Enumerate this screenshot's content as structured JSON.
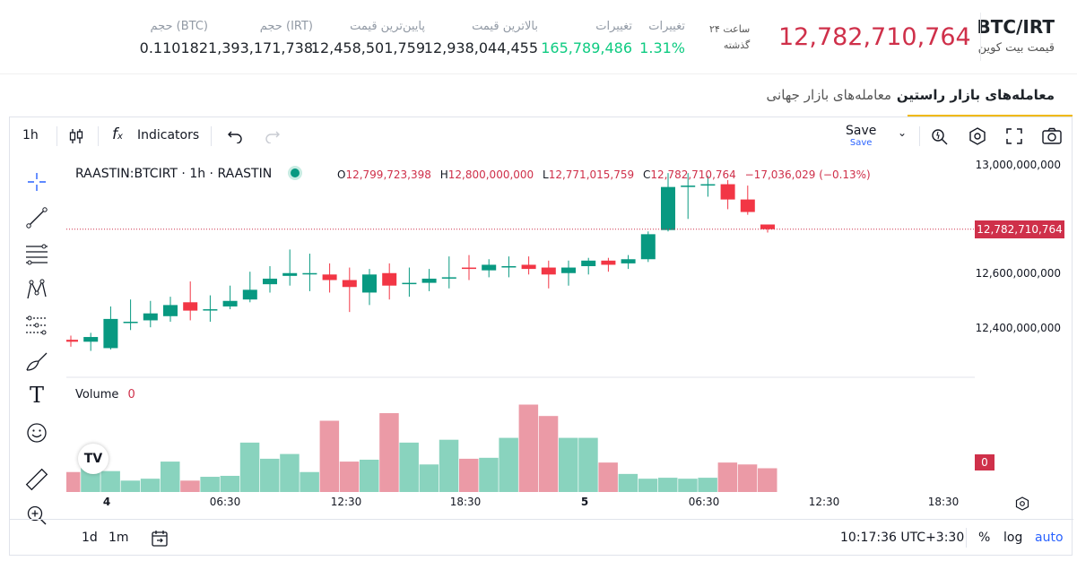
{
  "header": {
    "pair": "BTC/IRT",
    "pair_subtitle": "قیمت بیت کوین",
    "last_price": "12,782,710,764",
    "period_label": "۲۴ ساعت",
    "period_sub": "گذشته",
    "stats": [
      {
        "label": "تغییرات",
        "value": "1.31%",
        "green": true
      },
      {
        "label": "تغییرات",
        "value": "165,789,486",
        "green": true
      },
      {
        "label": "بالاترین قیمت",
        "value": "12,938,044,455",
        "green": false
      },
      {
        "label": "پایین‌ترین قیمت",
        "value": "12,458,501,759",
        "green": false
      },
      {
        "label": "حجم (IRT)",
        "value": "1,393,171,738",
        "green": false
      },
      {
        "label": "حجم (BTC)",
        "value": "0.110182",
        "green": false
      }
    ]
  },
  "tabs": [
    {
      "label": "معامله‌های بازار راستین",
      "active": true
    },
    {
      "label": "معامله‌های بازار جهانی",
      "active": false
    }
  ],
  "toolbar": {
    "interval": "1h",
    "indicators": "Indicators",
    "save": "Save",
    "save_sub": "Save"
  },
  "chart": {
    "symbol_line": "RAASTIN:BTCIRT · 1h · RAASTIN",
    "ohlc": {
      "o_label": "O",
      "o": "12,799,723,398",
      "h_label": "H",
      "h": "12,800,000,000",
      "l_label": "L",
      "l": "12,771,015,759",
      "c_label": "C",
      "c": "12,782,710,764",
      "change": "−17,036,029 (−0.13%)"
    },
    "volume_label": "Volume",
    "volume_value": "0",
    "volume_badge": "0",
    "last_price_tag": "12,782,710,764",
    "y_ticks": [
      "13,000,000,000",
      "12,600,000,000",
      "12,400,000,000"
    ],
    "x_ticks": [
      {
        "label": "4",
        "bold": true
      },
      {
        "label": "06:30",
        "bold": false
      },
      {
        "label": "12:30",
        "bold": false
      },
      {
        "label": "18:30",
        "bold": false
      },
      {
        "label": "5",
        "bold": true
      },
      {
        "label": "06:30",
        "bold": false
      },
      {
        "label": "12:30",
        "bold": false
      },
      {
        "label": "18:30",
        "bold": false
      }
    ],
    "colors": {
      "up": "#089981",
      "down": "#f23645",
      "vol_up": "#89d3be",
      "vol_down": "#eb9aa6"
    }
  },
  "chart_data": {
    "type": "candlestick",
    "y_range": [
      12250000000,
      13050000000
    ],
    "candles": [
      {
        "o": 12385000000,
        "h": 12400000000,
        "l": 12360000000,
        "c": 12378000000
      },
      {
        "o": 12378000000,
        "h": 12410000000,
        "l": 12345000000,
        "c": 12395000000
      },
      {
        "o": 12355000000,
        "h": 12505000000,
        "l": 12350000000,
        "c": 12460000000
      },
      {
        "o": 12450000000,
        "h": 12530000000,
        "l": 12420000000,
        "c": 12450000000
      },
      {
        "o": 12455000000,
        "h": 12525000000,
        "l": 12430000000,
        "c": 12480000000
      },
      {
        "o": 12470000000,
        "h": 12540000000,
        "l": 12450000000,
        "c": 12510000000
      },
      {
        "o": 12520000000,
        "h": 12595000000,
        "l": 12455000000,
        "c": 12490000000
      },
      {
        "o": 12495000000,
        "h": 12545000000,
        "l": 12450000000,
        "c": 12495000000
      },
      {
        "o": 12505000000,
        "h": 12580000000,
        "l": 12495000000,
        "c": 12525000000
      },
      {
        "o": 12530000000,
        "h": 12630000000,
        "l": 12520000000,
        "c": 12565000000
      },
      {
        "o": 12585000000,
        "h": 12650000000,
        "l": 12555000000,
        "c": 12605000000
      },
      {
        "o": 12615000000,
        "h": 12710000000,
        "l": 12580000000,
        "c": 12625000000
      },
      {
        "o": 12625000000,
        "h": 12695000000,
        "l": 12560000000,
        "c": 12625000000
      },
      {
        "o": 12620000000,
        "h": 12660000000,
        "l": 12555000000,
        "c": 12600000000
      },
      {
        "o": 12600000000,
        "h": 12645000000,
        "l": 12485000000,
        "c": 12575000000
      },
      {
        "o": 12555000000,
        "h": 12640000000,
        "l": 12510000000,
        "c": 12620000000
      },
      {
        "o": 12625000000,
        "h": 12660000000,
        "l": 12530000000,
        "c": 12580000000
      },
      {
        "o": 12590000000,
        "h": 12645000000,
        "l": 12540000000,
        "c": 12590000000
      },
      {
        "o": 12590000000,
        "h": 12640000000,
        "l": 12560000000,
        "c": 12605000000
      },
      {
        "o": 12610000000,
        "h": 12685000000,
        "l": 12570000000,
        "c": 12610000000
      },
      {
        "o": 12645000000,
        "h": 12690000000,
        "l": 12600000000,
        "c": 12640000000
      },
      {
        "o": 12635000000,
        "h": 12675000000,
        "l": 12610000000,
        "c": 12655000000
      },
      {
        "o": 12650000000,
        "h": 12685000000,
        "l": 12610000000,
        "c": 12650000000
      },
      {
        "o": 12655000000,
        "h": 12685000000,
        "l": 12620000000,
        "c": 12640000000
      },
      {
        "o": 12645000000,
        "h": 12670000000,
        "l": 12570000000,
        "c": 12620000000
      },
      {
        "o": 12625000000,
        "h": 12670000000,
        "l": 12580000000,
        "c": 12645000000
      },
      {
        "o": 12650000000,
        "h": 12680000000,
        "l": 12620000000,
        "c": 12670000000
      },
      {
        "o": 12670000000,
        "h": 12680000000,
        "l": 12630000000,
        "c": 12655000000
      },
      {
        "o": 12660000000,
        "h": 12690000000,
        "l": 12640000000,
        "c": 12675000000
      },
      {
        "o": 12675000000,
        "h": 12775000000,
        "l": 12665000000,
        "c": 12765000000
      },
      {
        "o": 12780000000,
        "h": 12985000000,
        "l": 12775000000,
        "c": 12935000000
      },
      {
        "o": 12935000000,
        "h": 12985000000,
        "l": 12820000000,
        "c": 12940000000
      },
      {
        "o": 12945000000,
        "h": 12975000000,
        "l": 12900000000,
        "c": 12945000000
      },
      {
        "o": 12945000000,
        "h": 12960000000,
        "l": 12855000000,
        "c": 12890000000
      },
      {
        "o": 12890000000,
        "h": 12940000000,
        "l": 12835000000,
        "c": 12845000000
      },
      {
        "o": 12800000000,
        "h": 12800000000,
        "l": 12771000000,
        "c": 12783000000
      }
    ],
    "volume_bars": [
      0.21,
      0.32,
      0.22,
      0.12,
      0.14,
      0.32,
      0.12,
      0.16,
      0.17,
      0.52,
      0.35,
      0.4,
      0.21,
      0.75,
      0.32,
      0.34,
      0.83,
      0.52,
      0.29,
      0.55,
      0.35,
      0.36,
      0.57,
      0.92,
      0.8,
      0.57,
      0.57,
      0.31,
      0.19,
      0.14,
      0.15,
      0.14,
      0.15,
      0.31,
      0.29,
      0.25
    ]
  },
  "bottombar": {
    "range_1d": "1d",
    "range_1m": "1m",
    "clock": "10:17:36 UTC+3:30",
    "percent": "%",
    "log": "log",
    "auto": "auto"
  }
}
